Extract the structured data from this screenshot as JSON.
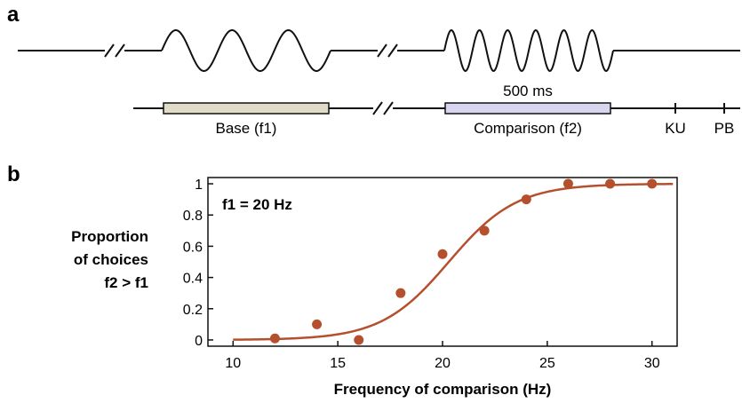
{
  "panel_a": {
    "label": "a",
    "duration_label": "500 ms",
    "base_label": "Base (f1)",
    "comparison_label": "Comparison (f2)",
    "ku_label": "KU",
    "pb_label": "PB",
    "base_bar_color": "#e0dcc7",
    "comparison_bar_color": "#d8d6ee"
  },
  "panel_b": {
    "label": "b",
    "annotation": "f1 = 20 Hz",
    "ylabel_lines": [
      "Proportion",
      "of choices",
      "f2 > f1"
    ],
    "xlabel": "Frequency of comparison (Hz)"
  },
  "chart_data": {
    "type": "scatter",
    "title": "",
    "xlabel": "Frequency of comparison (Hz)",
    "ylabel": "Proportion of choices f2 > f1",
    "xlim": [
      8.8,
      31.2
    ],
    "ylim": [
      -0.04,
      1.04
    ],
    "xticks": [
      10,
      15,
      20,
      25,
      30
    ],
    "yticks": [
      0,
      0.2,
      0.4,
      0.6,
      0.8,
      1
    ],
    "ytick_labels": [
      "0",
      "0.2",
      "0.4",
      "0.6",
      "0.8",
      "1"
    ],
    "grid": false,
    "series": [
      {
        "kind": "points",
        "x": [
          12,
          14,
          16,
          18,
          20,
          22,
          24,
          26,
          28,
          30
        ],
        "y": [
          0.01,
          0.1,
          0.0,
          0.3,
          0.55,
          0.7,
          0.9,
          1.0,
          1.0,
          1.0
        ]
      },
      {
        "kind": "fit_curve",
        "function": "logistic",
        "midpoint": 20.3,
        "slope": 0.62,
        "x_range": [
          10,
          31
        ]
      }
    ],
    "color": "#b5502e"
  }
}
